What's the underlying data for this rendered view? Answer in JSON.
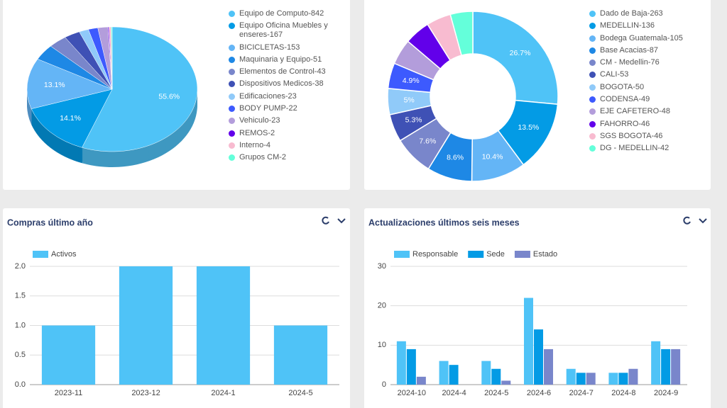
{
  "chart_data": [
    {
      "type": "pie",
      "categories": [
        "Equipo de Computo-842",
        "Equipo Oficina Muebles y enseres-167",
        "BICICLETAS-153",
        "Maquinaria y Equipo-51",
        "Elementos de Control-43",
        "Dispositivos Medicos-38",
        "Edificaciones-23",
        "BODY PUMP-22",
        "Vehiculo-23",
        "REMOS-2",
        "Interno-4",
        "Grupos CM-2"
      ],
      "values": [
        55.6,
        14.1,
        13.1,
        4.1,
        3.5,
        3.0,
        1.8,
        1.8,
        1.9,
        0.2,
        0.4,
        0.2
      ],
      "value_labels": [
        "55.6%",
        "14.1%",
        "13.1%",
        null,
        null,
        null,
        null,
        null,
        null,
        null,
        null,
        null
      ],
      "colors": [
        "#4fc3f7",
        "#039be5",
        "#64b5f6",
        "#1e88e5",
        "#7986cb",
        "#3f51b5",
        "#90caf9",
        "#3d5afe",
        "#b39ddb",
        "#6200ea",
        "#f8bbd0",
        "#64ffda"
      ]
    },
    {
      "type": "donut",
      "categories": [
        "Dado de Baja-263",
        "MEDELLIN-136",
        "Bodega Guatemala-105",
        "Base Acacias-87",
        "CM - Medellin-76",
        "CALI-53",
        "BOGOTA-50",
        "CODENSA-49",
        "EJE CAFETERO-48",
        "FAHORRO-46",
        "SGS BOGOTA-46",
        "DG - MEDELLIN-42"
      ],
      "values": [
        26.7,
        13.5,
        10.4,
        8.6,
        7.6,
        5.3,
        5,
        4.9,
        4.9,
        4.9,
        4.7,
        4.3
      ],
      "value_labels": [
        "26.7%",
        "13.5%",
        "10.4%",
        "8.6%",
        "7.6%",
        "5.3%",
        "5%",
        "4.9%",
        null,
        null,
        null,
        null
      ],
      "colors": [
        "#4fc3f7",
        "#039be5",
        "#64b5f6",
        "#1e88e5",
        "#7986cb",
        "#3f51b5",
        "#90caf9",
        "#3d5afe",
        "#b39ddb",
        "#6200ea",
        "#f8bbd0",
        "#64ffda"
      ]
    },
    {
      "type": "bar",
      "title": "Compras último año",
      "categories": [
        "2023-11",
        "2023-12",
        "2024-1",
        "2024-5"
      ],
      "series": [
        {
          "name": "Activos",
          "color": "#4fc3f7",
          "values": [
            1,
            2,
            2,
            1
          ]
        }
      ],
      "ylim": [
        0,
        2
      ],
      "yticks": [
        {
          "value": 0,
          "label": "0.0"
        },
        {
          "value": 0.5,
          "label": "0.5"
        },
        {
          "value": 1,
          "label": "1.0"
        },
        {
          "value": 1.5,
          "label": "1.5"
        },
        {
          "value": 2,
          "label": "2.0"
        }
      ],
      "grid": true
    },
    {
      "type": "bar",
      "title": "Actualizaciones últimos seis meses",
      "categories": [
        "2024-10",
        "2024-4",
        "2024-5",
        "2024-6",
        "2024-7",
        "2024-8",
        "2024-9"
      ],
      "series": [
        {
          "name": "Responsable",
          "color": "#4fc3f7",
          "values": [
            11,
            6,
            6,
            22,
            4,
            3,
            11
          ]
        },
        {
          "name": "Sede",
          "color": "#039be5",
          "values": [
            9,
            5,
            4,
            14,
            3,
            3,
            9
          ]
        },
        {
          "name": "Estado",
          "color": "#7986cb",
          "values": [
            2,
            0,
            1,
            9,
            3,
            4,
            9
          ]
        }
      ],
      "ylim": [
        0,
        30
      ],
      "yticks": [
        0,
        10,
        20,
        30
      ],
      "grid": true
    }
  ]
}
